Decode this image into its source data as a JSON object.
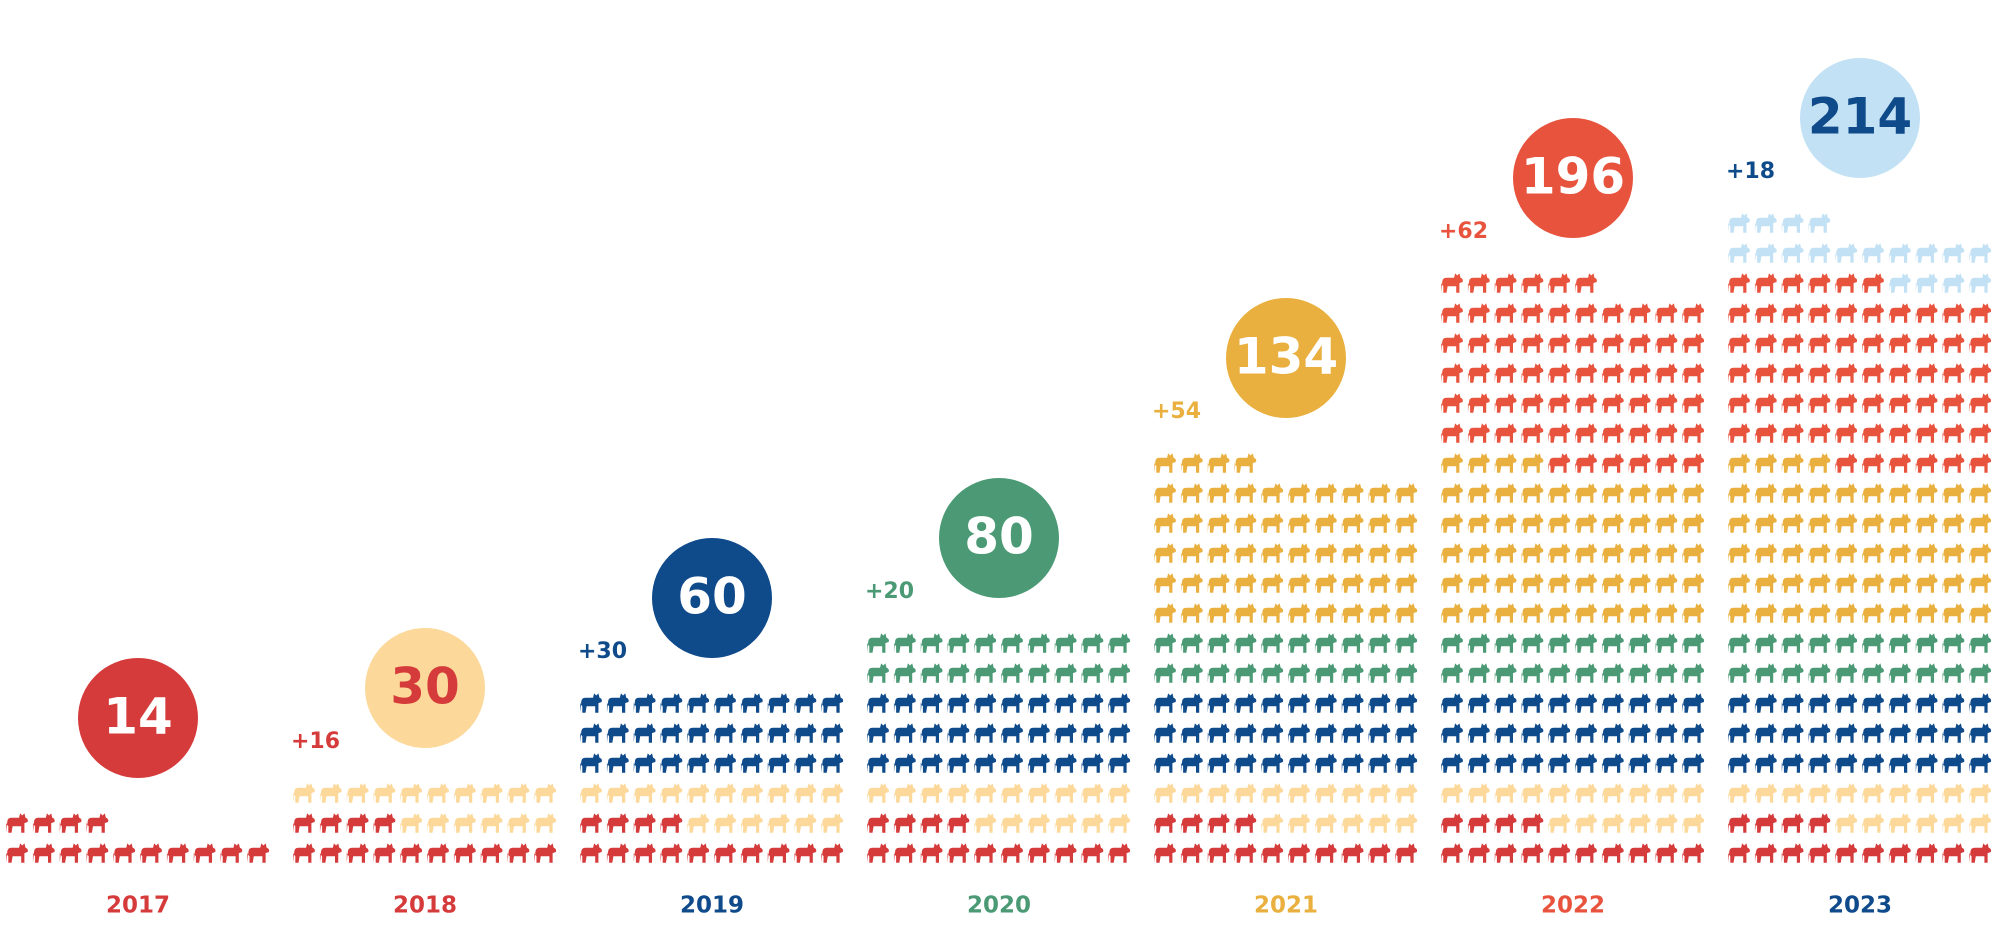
{
  "chart_data": {
    "type": "pictogram",
    "categories": [
      "2017",
      "2018",
      "2019",
      "2020",
      "2021",
      "2022",
      "2023"
    ],
    "totals": [
      14,
      30,
      60,
      80,
      134,
      196,
      214
    ],
    "increments": [
      14,
      16,
      30,
      20,
      54,
      62,
      18
    ],
    "increment_labels": [
      null,
      "+16",
      "+30",
      "+20",
      "+54",
      "+62",
      "+18"
    ],
    "colors": [
      "#d63b3b",
      "#fcd99a",
      "#0f4a8a",
      "#4b9a75",
      "#e9b03f",
      "#e8533e",
      "#c2e1f4"
    ],
    "label_colors": [
      "#d63b3b",
      "#d63b3b",
      "#0f4a8a",
      "#4b9a75",
      "#e9b03f",
      "#e8533e",
      "#0f4a8a"
    ],
    "circle_text_colors": [
      "#ffffff",
      "#d63b3b",
      "#ffffff",
      "#ffffff",
      "#ffffff",
      "#ffffff",
      "#0f4a8a"
    ],
    "icons_per_row": 10
  }
}
